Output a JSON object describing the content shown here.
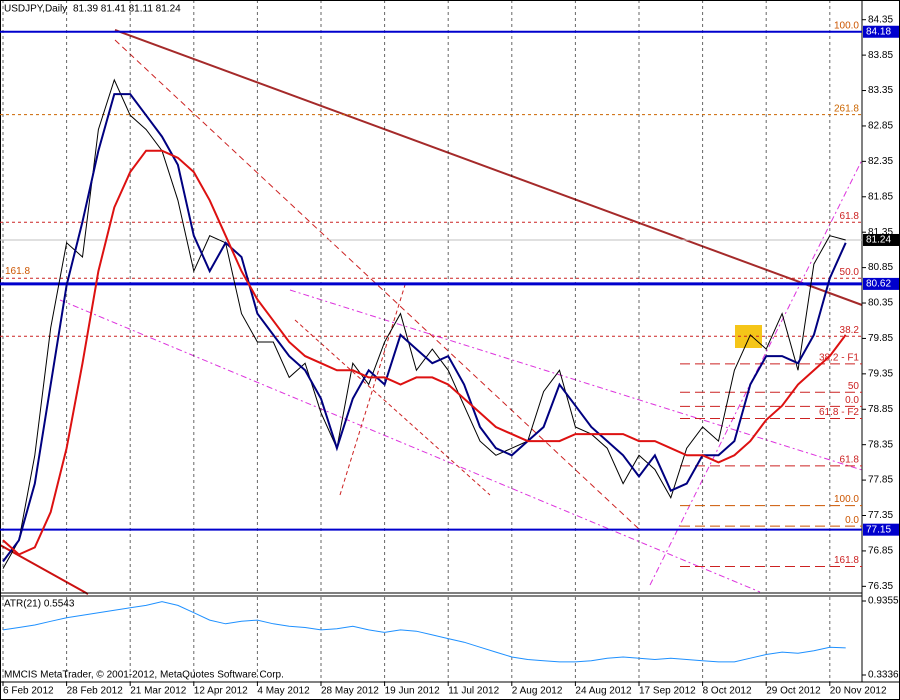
{
  "chart_data": {
    "type": "line",
    "title": "USDJPY,Daily",
    "quote": "81.39 81.41 81.11 81.24",
    "footer": "MMCIS MetaTrader, © 2001-2012, MetaQuotes Software Corp.",
    "categories": [
      "6 Feb 2012",
      null,
      null,
      null,
      "28 Feb 2012",
      null,
      null,
      null,
      "21 Mar 2012",
      null,
      null,
      null,
      "12 Apr 2012",
      null,
      null,
      null,
      "4 May 2012",
      null,
      null,
      null,
      "28 May 2012",
      null,
      null,
      null,
      "19 Jun 2012",
      null,
      null,
      null,
      "11 Jul 2012",
      null,
      null,
      null,
      "2 Aug 2012",
      null,
      null,
      null,
      "24 Aug 2012",
      null,
      null,
      null,
      "17 Sep 2012",
      null,
      null,
      null,
      "8 Oct 2012",
      null,
      null,
      null,
      "29 Oct 2012",
      null,
      null,
      null,
      "20 Nov 2012",
      null
    ],
    "series": [
      {
        "color": "#000000",
        "values": [
          76.6,
          77.0,
          78.2,
          80.0,
          81.2,
          81.0,
          82.8,
          83.5,
          83.0,
          82.8,
          82.5,
          81.8,
          80.8,
          81.3,
          81.2,
          80.2,
          79.8,
          79.8,
          79.3,
          79.5,
          78.8,
          78.3,
          79.5,
          79.2,
          79.8,
          80.2,
          79.4,
          79.7,
          79.4,
          78.9,
          78.4,
          78.2,
          78.3,
          78.4,
          79.1,
          79.4,
          78.6,
          78.5,
          78.3,
          77.8,
          78.2,
          78.0,
          77.6,
          78.3,
          78.6,
          78.4,
          79.4,
          79.9,
          79.7,
          80.2,
          79.4,
          80.9,
          81.3,
          81.24
        ]
      },
      {
        "color": "#000080",
        "values": [
          76.7,
          77.0,
          77.8,
          79.2,
          80.6,
          81.5,
          82.5,
          83.3,
          83.3,
          83.0,
          82.7,
          82.3,
          81.3,
          80.8,
          81.2,
          81.0,
          80.2,
          79.9,
          79.6,
          79.4,
          79.0,
          78.3,
          79.0,
          79.4,
          79.2,
          79.9,
          79.7,
          79.5,
          79.6,
          79.2,
          78.6,
          78.3,
          78.2,
          78.4,
          78.6,
          79.2,
          78.9,
          78.6,
          78.4,
          78.2,
          77.9,
          78.2,
          77.7,
          77.8,
          78.2,
          78.2,
          78.4,
          79.2,
          79.6,
          79.6,
          79.5,
          79.9,
          80.7,
          81.2
        ]
      },
      {
        "color": "#dd1111",
        "values": [
          77.0,
          76.8,
          76.9,
          77.4,
          78.3,
          79.5,
          80.8,
          81.7,
          82.2,
          82.5,
          82.5,
          82.4,
          82.2,
          81.8,
          81.3,
          80.8,
          80.4,
          80.1,
          79.8,
          79.6,
          79.5,
          79.4,
          79.4,
          79.3,
          79.3,
          79.2,
          79.3,
          79.3,
          79.2,
          79.0,
          78.8,
          78.6,
          78.5,
          78.4,
          78.4,
          78.4,
          78.5,
          78.5,
          78.5,
          78.5,
          78.4,
          78.4,
          78.3,
          78.2,
          78.2,
          78.1,
          78.2,
          78.4,
          78.7,
          78.9,
          79.2,
          79.4,
          79.6,
          79.9
        ]
      }
    ],
    "ylim": [
      76.27,
      84.6
    ],
    "yticks": [
      76.35,
      76.85,
      77.35,
      77.85,
      78.35,
      78.85,
      79.35,
      79.85,
      80.35,
      80.85,
      81.35,
      81.85,
      82.35,
      82.85,
      83.35,
      83.85,
      84.35
    ],
    "grid": "vertical",
    "levels": [
      {
        "value": 84.18,
        "color": "#0000cd"
      },
      {
        "value": 81.24,
        "color": "#000000"
      },
      {
        "value": 80.62,
        "color": "#0000cd"
      },
      {
        "value": 77.15,
        "color": "#0000cd"
      }
    ],
    "fib_retracement": [
      {
        "label": "100.0",
        "value": 84.18,
        "color": "#cc5500"
      },
      {
        "label": "261.8",
        "value": 83.01,
        "color": "#cc6600"
      },
      {
        "label": "61.8",
        "value": 81.49,
        "color": "#cc2222"
      },
      {
        "label": "50.0",
        "value": 80.7,
        "color": "#cc2222"
      },
      {
        "label": "38.2",
        "value": 79.88,
        "color": "#cc2222"
      }
    ],
    "fib_left": {
      "label": "161.8",
      "value": 80.7,
      "color": "#cc5500"
    },
    "fib_projection": [
      {
        "label": "38.2 - F1",
        "value": 79.49,
        "color": "#cc2222"
      },
      {
        "label": "50",
        "value": 79.09,
        "color": "#cc2222"
      },
      {
        "label": "0.0",
        "value": 78.89,
        "color": "#cc2222"
      },
      {
        "label": "61.8 - F2",
        "value": 78.72,
        "color": "#cc2222"
      },
      {
        "label": "61.8",
        "value": 78.05,
        "color": "#cc2222"
      },
      {
        "label": "100.0",
        "value": 77.49,
        "color": "#cc5500"
      },
      {
        "label": "0.0",
        "value": 77.2,
        "color": "#cc5500"
      },
      {
        "label": "161.8",
        "value": 76.63,
        "color": "#cc2222"
      }
    ],
    "atr": {
      "label": "ATR(21) 0.5543",
      "color": "#1e90ff",
      "values": [
        0.7,
        0.72,
        0.74,
        0.77,
        0.8,
        0.82,
        0.84,
        0.86,
        0.88,
        0.9,
        0.93,
        0.9,
        0.84,
        0.78,
        0.75,
        0.77,
        0.78,
        0.75,
        0.73,
        0.72,
        0.7,
        0.71,
        0.73,
        0.7,
        0.68,
        0.7,
        0.69,
        0.66,
        0.63,
        0.6,
        0.56,
        0.52,
        0.48,
        0.46,
        0.45,
        0.44,
        0.44,
        0.45,
        0.47,
        0.48,
        0.47,
        0.46,
        0.47,
        0.46,
        0.45,
        0.44,
        0.44,
        0.47,
        0.5,
        0.52,
        0.51,
        0.53,
        0.56,
        0.5543
      ],
      "ylim": [
        0.301,
        0.968
      ],
      "yticks": [
        0.9355,
        0.3336
      ]
    }
  }
}
